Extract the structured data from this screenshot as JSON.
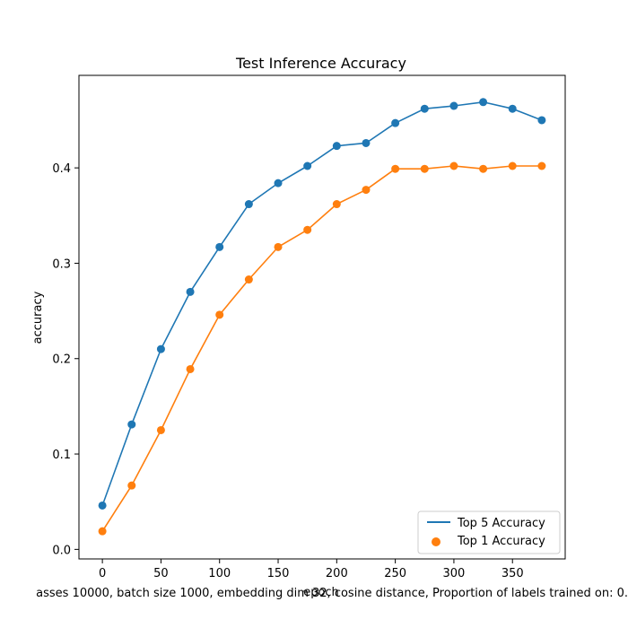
{
  "chart_data": {
    "type": "line",
    "title": "Test Inference Accuracy",
    "xlabel": "epoch",
    "ylabel": "accuracy",
    "caption": "asses 10000, batch size 1000, embedding dim 32, cosine distance, Proportion of labels trained on: 0.",
    "x": [
      0,
      25,
      50,
      75,
      100,
      125,
      150,
      175,
      200,
      225,
      250,
      275,
      300,
      325,
      350,
      375
    ],
    "xlim": [
      -20,
      395
    ],
    "ylim": [
      -0.01,
      0.497
    ],
    "xticks": [
      0,
      50,
      100,
      150,
      200,
      250,
      300,
      350
    ],
    "xtick_labels": [
      "0",
      "50",
      "100",
      "150",
      "200",
      "250",
      "300",
      "350"
    ],
    "yticks": [
      0.0,
      0.1,
      0.2,
      0.3,
      0.4
    ],
    "ytick_labels": [
      "0.0",
      "0.1",
      "0.2",
      "0.3",
      "0.4"
    ],
    "grid": false,
    "legend_position": "bottom-right",
    "series": [
      {
        "name": "Top 5 Accuracy",
        "color": "#1f77b4",
        "style": "line+markers",
        "legend_marker": "line",
        "values": [
          0.046,
          0.131,
          0.21,
          0.27,
          0.317,
          0.362,
          0.384,
          0.402,
          0.423,
          0.426,
          0.447,
          0.462,
          0.465,
          0.469,
          0.462,
          0.45
        ]
      },
      {
        "name": "Top 1 Accuracy",
        "color": "#ff7f0e",
        "style": "line+markers",
        "legend_marker": "dot",
        "values": [
          0.019,
          0.067,
          0.125,
          0.189,
          0.246,
          0.283,
          0.317,
          0.335,
          0.362,
          0.377,
          0.399,
          0.399,
          0.402,
          0.399,
          0.402,
          0.402
        ]
      }
    ]
  }
}
